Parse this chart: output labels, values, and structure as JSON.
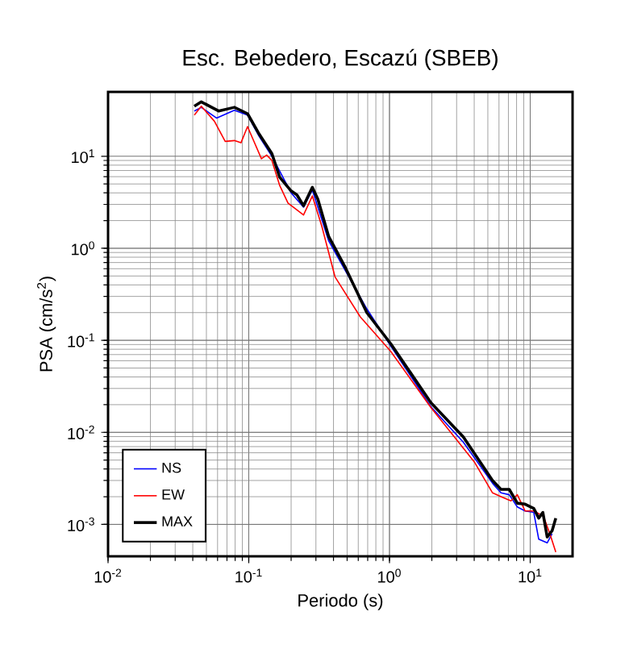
{
  "chart_data": {
    "type": "line",
    "title": "Esc. Bebedero, Escazú (SBEB)",
    "xlabel": "Periodo (s)",
    "ylabel": "PSA (cm/s$^{2}$)",
    "log": "xy",
    "grid": true,
    "legend": "bottom left",
    "xlim": [
      0.01,
      20
    ],
    "ylim": [
      0.00045,
      50
    ],
    "xticks": [
      {
        "value": 0.01,
        "label": "10$^{-2}$"
      },
      {
        "value": 0.1,
        "label": "10$^{-1}$"
      },
      {
        "value": 1,
        "label": "10$^{0}$"
      },
      {
        "value": 10,
        "label": "10$^{1}$"
      }
    ],
    "yticks": [
      {
        "value": 0.001,
        "label": "10$^{-3}$"
      },
      {
        "value": 0.01,
        "label": "10$^{-2}$"
      },
      {
        "value": 0.1,
        "label": "10$^{-1}$"
      },
      {
        "value": 1,
        "label": "10$^{0}$"
      },
      {
        "value": 10,
        "label": "10$^{1}$"
      }
    ],
    "series": [
      {
        "name": "NS",
        "color": "#0000ff",
        "x": [
          0.041,
          0.046,
          0.059,
          0.079,
          0.098,
          0.117,
          0.146,
          0.2,
          0.245,
          0.283,
          0.37,
          0.48,
          0.69,
          1.02,
          1.97,
          3.35,
          5.4,
          6.2,
          7.1,
          8.1,
          9.2,
          10.6,
          11.5,
          13.2,
          14.3
        ],
        "values": [
          31,
          34,
          26,
          31.6,
          28,
          17,
          10,
          4.0,
          2.8,
          4.3,
          1.2,
          0.59,
          0.22,
          0.087,
          0.019,
          0.0078,
          0.0028,
          0.0022,
          0.0021,
          0.00155,
          0.0014,
          0.00135,
          0.00069,
          0.00063,
          0.00079
        ]
      },
      {
        "name": "EW",
        "color": "#ff0000",
        "x": [
          0.041,
          0.046,
          0.057,
          0.068,
          0.079,
          0.088,
          0.098,
          0.123,
          0.134,
          0.146,
          0.166,
          0.19,
          0.245,
          0.283,
          0.33,
          0.41,
          0.62,
          1.02,
          1.97,
          4.0,
          5.4,
          6.2,
          7.3,
          8.1,
          9.2,
          10.6,
          12.4,
          13.8,
          15.2
        ],
        "values": [
          28,
          35,
          24,
          14.5,
          14.8,
          14,
          21,
          9.4,
          10.3,
          9,
          4.8,
          3.1,
          2.3,
          3.7,
          1.75,
          0.49,
          0.18,
          0.076,
          0.0186,
          0.0048,
          0.0022,
          0.002,
          0.0018,
          0.0021,
          0.0014,
          0.0014,
          0.00123,
          0.00079,
          0.0005
        ]
      },
      {
        "name": "MAX",
        "color": "#000000",
        "x": [
          0.041,
          0.046,
          0.061,
          0.079,
          0.098,
          0.117,
          0.146,
          0.166,
          0.2,
          0.22,
          0.245,
          0.283,
          0.31,
          0.37,
          0.48,
          0.69,
          1.02,
          1.97,
          3.35,
          5.4,
          6.2,
          7.1,
          8.1,
          9.2,
          10.6,
          11.5,
          12.3,
          13.2,
          14.3,
          15.2
        ],
        "values": [
          35,
          39,
          31,
          34,
          29,
          18,
          10.7,
          5.9,
          4.2,
          3.8,
          2.9,
          4.6,
          3.4,
          1.34,
          0.64,
          0.2,
          0.092,
          0.021,
          0.0089,
          0.003,
          0.0024,
          0.0024,
          0.0017,
          0.00166,
          0.00149,
          0.00117,
          0.00135,
          0.00073,
          0.00085,
          0.00117
        ]
      }
    ]
  }
}
